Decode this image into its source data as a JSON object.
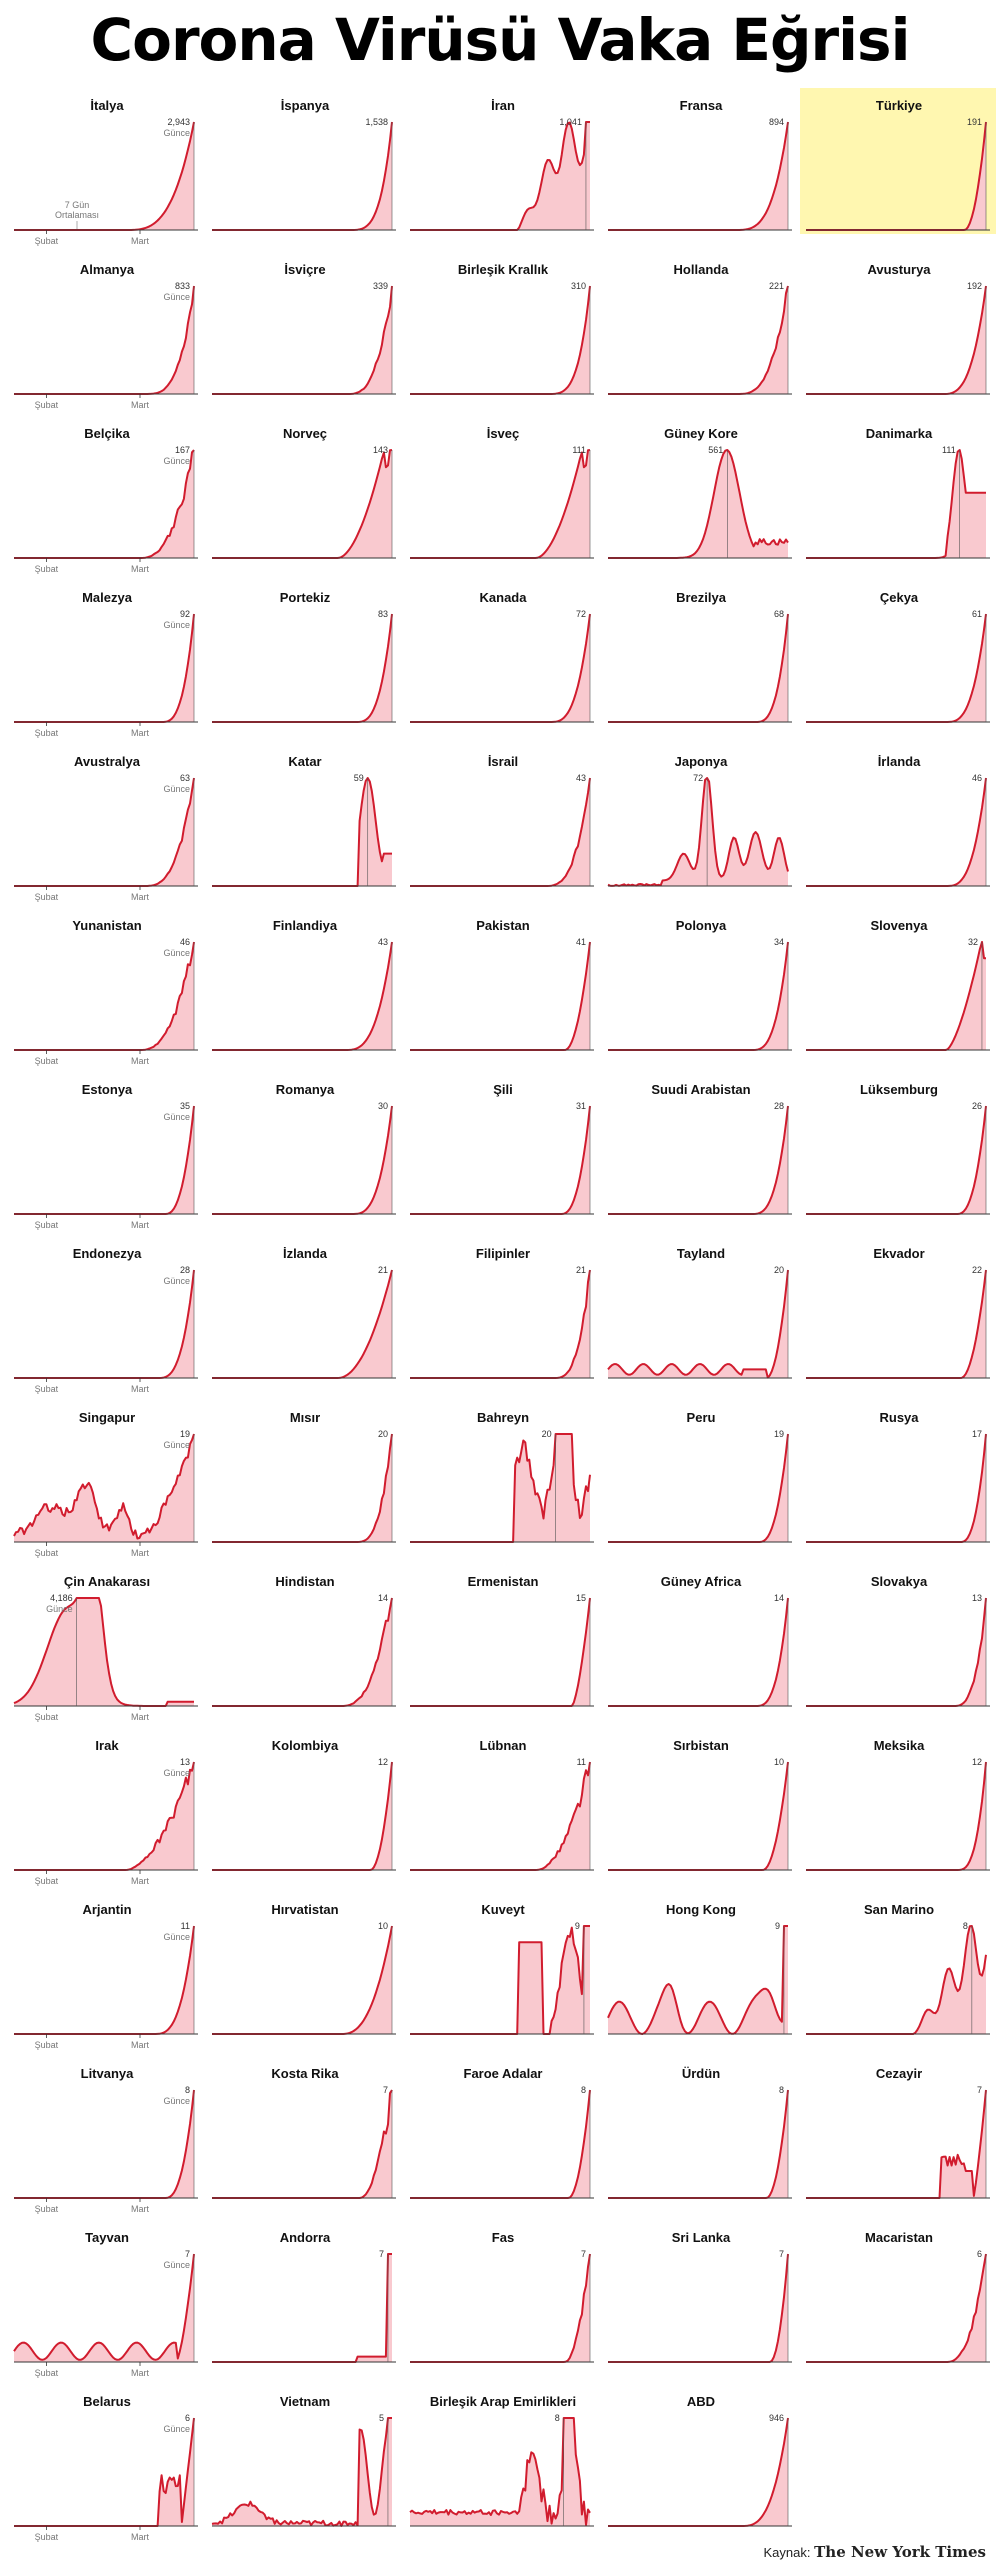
{
  "title": "Corona Virüsü Vaka Eğrisi",
  "source_label": "Kaynak:",
  "source_brand": "The New York Times",
  "colors": {
    "line": "#d11c2e",
    "fill": "#f9c9cf",
    "highlight_bg": "#fff7b0",
    "axis": "#333333",
    "text": "#111111",
    "muted": "#777777"
  },
  "chart_data": {
    "type": "area",
    "x_axis_labels": [
      "Şubat",
      "Mart"
    ],
    "latest_label": "Günce",
    "avg_label_line1": "7 Gün",
    "avg_label_line2": "Ortalaması",
    "highlight": "Türkiye",
    "countries": [
      {
        "name": "İtalya",
        "peak": 2943,
        "label": "2,943",
        "shape": "exp",
        "start": 0.62,
        "k": 3.2
      },
      {
        "name": "İspanya",
        "peak": 1538,
        "label": "1,538",
        "shape": "exp",
        "start": 0.75,
        "k": 4
      },
      {
        "name": "İran",
        "peak": 1041,
        "label": "1,041",
        "shape": "iran"
      },
      {
        "name": "Fransa",
        "peak": 894,
        "label": "894",
        "shape": "exp",
        "start": 0.7,
        "k": 3.5
      },
      {
        "name": "Türkiye",
        "peak": 191,
        "label": "191",
        "shape": "exp",
        "start": 0.88,
        "k": 2
      },
      {
        "name": "Almanya",
        "peak": 833,
        "label": "833",
        "shape": "exp",
        "start": 0.72,
        "k": 3.5,
        "noise": 0.05
      },
      {
        "name": "İsviçre",
        "peak": 339,
        "label": "339",
        "shape": "exp",
        "start": 0.75,
        "k": 3,
        "noise": 0.08
      },
      {
        "name": "Birleşik Krallık",
        "peak": 310,
        "label": "310",
        "shape": "exp",
        "start": 0.75,
        "k": 4
      },
      {
        "name": "Hollanda",
        "peak": 221,
        "label": "221",
        "shape": "exp",
        "start": 0.72,
        "k": 3,
        "noise": 0.06
      },
      {
        "name": "Avusturya",
        "peak": 192,
        "label": "192",
        "shape": "exp",
        "start": 0.76,
        "k": 3
      },
      {
        "name": "Belçika",
        "peak": 167,
        "label": "167",
        "shape": "exp",
        "start": 0.7,
        "k": 2.5,
        "noise": 0.1
      },
      {
        "name": "Norveç",
        "peak": 143,
        "label": "143",
        "shape": "plateau",
        "start": 0.7
      },
      {
        "name": "İsveç",
        "peak": 111,
        "label": "111",
        "shape": "plateau",
        "start": 0.7
      },
      {
        "name": "Güney Kore",
        "peak": 561,
        "label": "561",
        "shape": "bell",
        "center": 0.66,
        "width": 0.1,
        "tail": 0.15
      },
      {
        "name": "Danimarka",
        "peak": 111,
        "label": "111",
        "shape": "spike",
        "center": 0.85
      },
      {
        "name": "Malezya",
        "peak": 92,
        "label": "92",
        "shape": "exp",
        "start": 0.82,
        "k": 3
      },
      {
        "name": "Portekiz",
        "peak": 83,
        "label": "83",
        "shape": "exp",
        "start": 0.8,
        "k": 3
      },
      {
        "name": "Kanada",
        "peak": 72,
        "label": "72",
        "shape": "exp",
        "start": 0.78,
        "k": 3
      },
      {
        "name": "Brezilya",
        "peak": 68,
        "label": "68",
        "shape": "exp",
        "start": 0.82,
        "k": 3
      },
      {
        "name": "Çekya",
        "peak": 61,
        "label": "61",
        "shape": "exp",
        "start": 0.78,
        "k": 3
      },
      {
        "name": "Avustralya",
        "peak": 63,
        "label": "63",
        "shape": "exp",
        "start": 0.72,
        "k": 3,
        "noise": 0.05
      },
      {
        "name": "Katar",
        "peak": 59,
        "label": "59",
        "shape": "katar"
      },
      {
        "name": "İsrail",
        "peak": 43,
        "label": "43",
        "shape": "exp",
        "start": 0.75,
        "k": 3,
        "noise": 0.06
      },
      {
        "name": "Japonya",
        "peak": 72,
        "label": "72",
        "shape": "japan"
      },
      {
        "name": "İrlanda",
        "peak": 46,
        "label": "46",
        "shape": "exp",
        "start": 0.78,
        "k": 3
      },
      {
        "name": "Yunanistan",
        "peak": 46,
        "label": "46",
        "shape": "exp",
        "start": 0.7,
        "k": 2.5,
        "noise": 0.08
      },
      {
        "name": "Finlandiya",
        "peak": 43,
        "label": "43",
        "shape": "exp",
        "start": 0.74,
        "k": 3
      },
      {
        "name": "Pakistan",
        "peak": 41,
        "label": "41",
        "shape": "exp",
        "start": 0.86,
        "k": 2
      },
      {
        "name": "Polonya",
        "peak": 34,
        "label": "34",
        "shape": "exp",
        "start": 0.8,
        "k": 3
      },
      {
        "name": "Slovenya",
        "peak": 32,
        "label": "32",
        "shape": "slov"
      },
      {
        "name": "Estonya",
        "peak": 35,
        "label": "35",
        "shape": "exp",
        "start": 0.84,
        "k": 2.5
      },
      {
        "name": "Romanya",
        "peak": 30,
        "label": "30",
        "shape": "exp",
        "start": 0.78,
        "k": 3
      },
      {
        "name": "Şili",
        "peak": 31,
        "label": "31",
        "shape": "exp",
        "start": 0.84,
        "k": 2.5
      },
      {
        "name": "Suudi Arabistan",
        "peak": 28,
        "label": "28",
        "shape": "exp",
        "start": 0.8,
        "k": 3
      },
      {
        "name": "Lüksemburg",
        "peak": 26,
        "label": "26",
        "shape": "exp",
        "start": 0.84,
        "k": 2.5
      },
      {
        "name": "Endonezya",
        "peak": 28,
        "label": "28",
        "shape": "exp",
        "start": 0.8,
        "k": 3
      },
      {
        "name": "İzlanda",
        "peak": 21,
        "label": "21",
        "shape": "exp",
        "start": 0.7,
        "k": 2
      },
      {
        "name": "Filipinler",
        "peak": 21,
        "label": "21",
        "shape": "exp",
        "start": 0.8,
        "k": 3,
        "noise": 0.08
      },
      {
        "name": "Tayland",
        "peak": 20,
        "label": "20",
        "shape": "thai"
      },
      {
        "name": "Ekvador",
        "peak": 22,
        "label": "22",
        "shape": "exp",
        "start": 0.86,
        "k": 2
      },
      {
        "name": "Singapur",
        "peak": 19,
        "label": "19",
        "shape": "sing"
      },
      {
        "name": "Mısır",
        "peak": 20,
        "label": "20",
        "shape": "exp",
        "start": 0.8,
        "k": 3,
        "noise": 0.08
      },
      {
        "name": "Bahreyn",
        "peak": 20,
        "label": "20",
        "shape": "bahreyn"
      },
      {
        "name": "Peru",
        "peak": 19,
        "label": "19",
        "shape": "exp",
        "start": 0.84,
        "k": 2.5
      },
      {
        "name": "Rusya",
        "peak": 17,
        "label": "17",
        "shape": "exp",
        "start": 0.86,
        "k": 2.5
      },
      {
        "name": "Çin Anakarası",
        "peak": 4186,
        "label": "4,186",
        "shape": "china"
      },
      {
        "name": "Hindistan",
        "peak": 14,
        "label": "14",
        "shape": "exp",
        "start": 0.72,
        "k": 2.5,
        "noise": 0.1
      },
      {
        "name": "Ermenistan",
        "peak": 15,
        "label": "15",
        "shape": "exp",
        "start": 0.9,
        "k": 1.5
      },
      {
        "name": "Güney Africa",
        "peak": 14,
        "label": "14",
        "shape": "exp",
        "start": 0.82,
        "k": 3
      },
      {
        "name": "Slovakya",
        "peak": 13,
        "label": "13",
        "shape": "exp",
        "start": 0.82,
        "k": 3,
        "noise": 0.08
      },
      {
        "name": "Irak",
        "peak": 13,
        "label": "13",
        "shape": "exp",
        "start": 0.62,
        "k": 1.8,
        "noise": 0.1
      },
      {
        "name": "Kolombiya",
        "peak": 12,
        "label": "12",
        "shape": "exp",
        "start": 0.88,
        "k": 2
      },
      {
        "name": "Lübnan",
        "peak": 11,
        "label": "11",
        "shape": "exp",
        "start": 0.7,
        "k": 2,
        "noise": 0.12
      },
      {
        "name": "Sırbistan",
        "peak": 10,
        "label": "10",
        "shape": "exp",
        "start": 0.86,
        "k": 2
      },
      {
        "name": "Meksika",
        "peak": 12,
        "label": "12",
        "shape": "exp",
        "start": 0.84,
        "k": 3
      },
      {
        "name": "Arjantin",
        "peak": 11,
        "label": "11",
        "shape": "exp",
        "start": 0.78,
        "k": 3
      },
      {
        "name": "Hırvatistan",
        "peak": 10,
        "label": "10",
        "shape": "exp",
        "start": 0.72,
        "k": 2.5
      },
      {
        "name": "Kuveyt",
        "peak": 9,
        "label": "9",
        "shape": "kuveyt"
      },
      {
        "name": "Hong Kong",
        "peak": 9,
        "label": "9",
        "shape": "hk"
      },
      {
        "name": "San Marino",
        "peak": 8,
        "label": "8",
        "shape": "sanmarino"
      },
      {
        "name": "Litvanya",
        "peak": 8,
        "label": "8",
        "shape": "exp",
        "start": 0.84,
        "k": 2.5
      },
      {
        "name": "Kosta Rika",
        "peak": 7,
        "label": "7",
        "shape": "exp",
        "start": 0.82,
        "k": 2,
        "noise": 0.12
      },
      {
        "name": "Faroe Adalar",
        "peak": 8,
        "label": "8",
        "shape": "exp",
        "start": 0.88,
        "k": 2
      },
      {
        "name": "Ürdün",
        "peak": 8,
        "label": "8",
        "shape": "exp",
        "start": 0.88,
        "k": 2
      },
      {
        "name": "Cezayir",
        "peak": 7,
        "label": "7",
        "shape": "cezayir"
      },
      {
        "name": "Tayvan",
        "peak": 7,
        "label": "7",
        "shape": "taiwan"
      },
      {
        "name": "Andorra",
        "peak": 7,
        "label": "7",
        "shape": "spike_end"
      },
      {
        "name": "Fas",
        "peak": 7,
        "label": "7",
        "shape": "exp",
        "start": 0.86,
        "k": 2,
        "noise": 0.1
      },
      {
        "name": "Sri Lanka",
        "peak": 7,
        "label": "7",
        "shape": "exp",
        "start": 0.9,
        "k": 2
      },
      {
        "name": "Macaristan",
        "peak": 6,
        "label": "6",
        "shape": "exp",
        "start": 0.78,
        "k": 2.5,
        "noise": 0.08
      },
      {
        "name": "Belarus",
        "peak": 6,
        "label": "6",
        "shape": "belarus"
      },
      {
        "name": "Vietnam",
        "peak": 5,
        "label": "5",
        "shape": "vietnam"
      },
      {
        "name": "Birleşik Arap Emirlikleri",
        "peak": 8,
        "label": "8",
        "shape": "bae"
      },
      {
        "name": "ABD",
        "peak": 946,
        "label": "946",
        "shape": "exp",
        "start": 0.74,
        "k": 3
      }
    ]
  }
}
